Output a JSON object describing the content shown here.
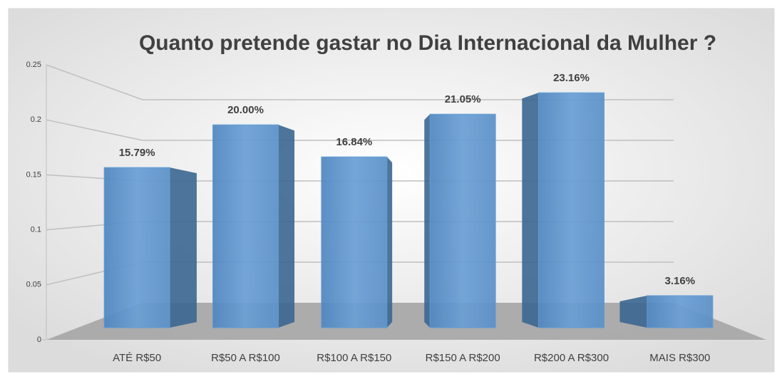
{
  "chart_data": {
    "type": "bar",
    "title": "Quanto pretende gastar no Dia Internacional da Mulher ?",
    "categories": [
      "ATÉ R$50",
      "R$50 A R$100",
      "R$100 A R$150",
      "R$150 A R$200",
      "R$200 A R$300",
      "MAIS R$300"
    ],
    "values": [
      0.1579,
      0.2,
      0.1684,
      0.2105,
      0.2316,
      0.0316
    ],
    "value_labels": [
      "15.79%",
      "20.00%",
      "16.84%",
      "21.05%",
      "23.16%",
      "3.16%"
    ],
    "color": "#5b9bd5",
    "ylim": [
      0,
      0.25
    ],
    "yticks": [
      0,
      0.05,
      0.1,
      0.15,
      0.2,
      0.25
    ],
    "grid": true
  }
}
